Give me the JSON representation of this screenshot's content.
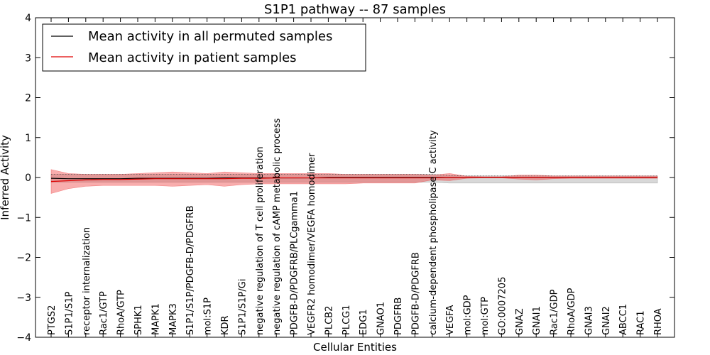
{
  "chart_data": {
    "type": "line",
    "title": "S1P1 pathway -- 87 samples",
    "xlabel": "Cellular Entities",
    "ylabel": "Inferred Activity",
    "ylim": [
      -4,
      4
    ],
    "yticks": [
      -4,
      -3,
      -2,
      -1,
      0,
      1,
      2,
      3,
      4
    ],
    "ytick_labels": [
      "−4",
      "−3",
      "−2",
      "−1",
      "0",
      "1",
      "2",
      "3",
      "4"
    ],
    "grid": false,
    "legend_position": "top-left",
    "categories": [
      "PTGS2",
      "S1P1/S1P",
      "receptor internalization",
      "Rac1/GTP",
      "RhoA/GTP",
      "SPHK1",
      "MAPK1",
      "MAPK3",
      "S1P1/S1P/PDGFB-D/PDGFRB",
      "mol:S1P",
      "KDR",
      "S1P1/S1P/Gi",
      "negative regulation of T cell proliferation",
      "negative regulation of cAMP metabolic process",
      "PDGFB-D/PDGFRB/PLCgamma1",
      "VEGFR2 homodimer/VEGFA homodimer",
      "PLCB2",
      "PLCG1",
      "EDG1",
      "GNAO1",
      "PDGFRB",
      "PDGFB-D/PDGFRB",
      "calcium-dependent phospholipase C activity",
      "VEGFA",
      "mol:GDP",
      "mol:GTP",
      "GO:0007205",
      "GNAZ",
      "GNAI1",
      "Rac1/GDP",
      "RhoA/GDP",
      "GNAI3",
      "GNAI2",
      "ABCC1",
      "RAC1",
      "RHOA"
    ],
    "series": [
      {
        "name": "Mean activity in all permuted samples",
        "color": "#000000",
        "values": [
          -0.02,
          -0.03,
          -0.03,
          -0.03,
          -0.03,
          -0.02,
          -0.02,
          -0.02,
          -0.02,
          -0.02,
          -0.01,
          -0.01,
          -0.01,
          -0.01,
          -0.01,
          -0.01,
          0.0,
          0.0,
          0.0,
          0.0,
          0.0,
          0.0,
          0.0,
          0.0,
          0.0,
          0.0,
          0.0,
          0.0,
          0.0,
          0.0,
          0.0,
          0.0,
          0.0,
          0.0,
          0.0,
          0.0
        ],
        "band_lower": [
          -0.12,
          -0.12,
          -0.12,
          -0.12,
          -0.12,
          -0.12,
          -0.12,
          -0.12,
          -0.12,
          -0.12,
          -0.12,
          -0.12,
          -0.12,
          -0.12,
          -0.12,
          -0.12,
          -0.12,
          -0.12,
          -0.12,
          -0.12,
          -0.12,
          -0.12,
          -0.12,
          -0.14,
          -0.14,
          -0.14,
          -0.14,
          -0.14,
          -0.14,
          -0.14,
          -0.14,
          -0.14,
          -0.14,
          -0.14,
          -0.14,
          -0.14
        ],
        "band_upper": [
          0.08,
          0.08,
          0.08,
          0.08,
          0.08,
          0.08,
          0.08,
          0.08,
          0.08,
          0.08,
          0.08,
          0.08,
          0.08,
          0.08,
          0.08,
          0.08,
          0.08,
          0.08,
          0.08,
          0.08,
          0.08,
          0.08,
          0.08,
          0.05,
          0.04,
          0.04,
          0.04,
          0.04,
          0.04,
          0.04,
          0.04,
          0.04,
          0.04,
          0.04,
          0.04,
          0.04
        ]
      },
      {
        "name": "Mean activity in patient samples",
        "color": "#e00000",
        "values": [
          -0.1,
          -0.08,
          -0.06,
          -0.05,
          -0.05,
          -0.04,
          -0.03,
          -0.03,
          -0.03,
          -0.03,
          -0.03,
          -0.02,
          -0.02,
          -0.01,
          -0.01,
          -0.01,
          -0.01,
          -0.01,
          -0.01,
          -0.01,
          -0.01,
          -0.01,
          -0.01,
          0.0,
          0.0,
          0.0,
          0.0,
          0.0,
          0.0,
          0.0,
          0.0,
          0.0,
          0.0,
          0.0,
          0.0,
          0.0
        ],
        "band_lower": [
          -0.4,
          -0.28,
          -0.22,
          -0.2,
          -0.2,
          -0.2,
          -0.2,
          -0.22,
          -0.2,
          -0.18,
          -0.22,
          -0.18,
          -0.16,
          -0.16,
          -0.16,
          -0.16,
          -0.16,
          -0.16,
          -0.14,
          -0.14,
          -0.14,
          -0.14,
          -0.06,
          -0.08,
          -0.02,
          -0.01,
          -0.01,
          -0.04,
          -0.06,
          -0.03,
          -0.02,
          -0.02,
          -0.02,
          -0.02,
          -0.02,
          -0.02
        ],
        "band_upper": [
          0.2,
          0.1,
          0.08,
          0.08,
          0.08,
          0.1,
          0.12,
          0.14,
          0.12,
          0.1,
          0.14,
          0.12,
          0.1,
          0.1,
          0.1,
          0.1,
          0.1,
          0.08,
          0.08,
          0.08,
          0.08,
          0.08,
          0.06,
          0.1,
          0.03,
          0.02,
          0.02,
          0.06,
          0.06,
          0.04,
          0.04,
          0.04,
          0.04,
          0.04,
          0.04,
          0.04
        ]
      }
    ]
  }
}
